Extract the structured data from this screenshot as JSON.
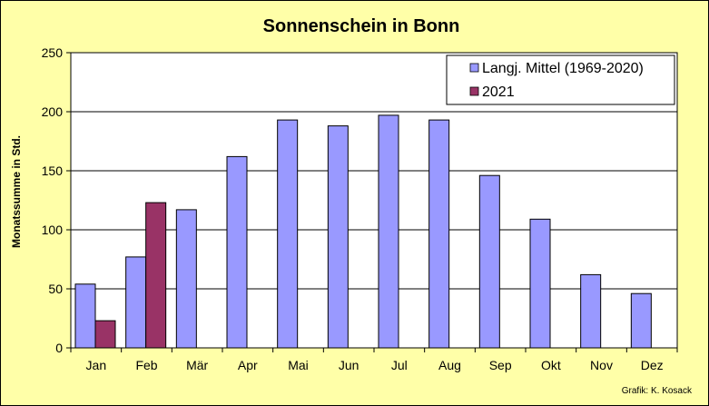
{
  "chart_data": {
    "type": "bar",
    "title": "Sonnenschein in Bonn",
    "ylabel": "Monatssumme in Std.",
    "xlabel": "",
    "ylim": [
      0,
      250
    ],
    "yticks": [
      0,
      50,
      100,
      150,
      200,
      250
    ],
    "grid": true,
    "legend_position": "top-right",
    "categories": [
      "Jan",
      "Feb",
      "Mär",
      "Apr",
      "Mai",
      "Jun",
      "Jul",
      "Aug",
      "Sep",
      "Okt",
      "Nov",
      "Dez"
    ],
    "series": [
      {
        "name": "Langj. Mittel (1969-2020)",
        "color": "#9999ff",
        "values": [
          54,
          77,
          117,
          162,
          193,
          188,
          197,
          193,
          146,
          109,
          62,
          46
        ]
      },
      {
        "name": "2021",
        "color": "#993366",
        "values": [
          23,
          123,
          null,
          null,
          null,
          null,
          null,
          null,
          null,
          null,
          null,
          null
        ]
      }
    ]
  },
  "credit": "Grafik:  K. Kosack",
  "colors": {
    "background": "#ffffa8",
    "plot_background": "#ffffff",
    "grid": "#000000"
  }
}
